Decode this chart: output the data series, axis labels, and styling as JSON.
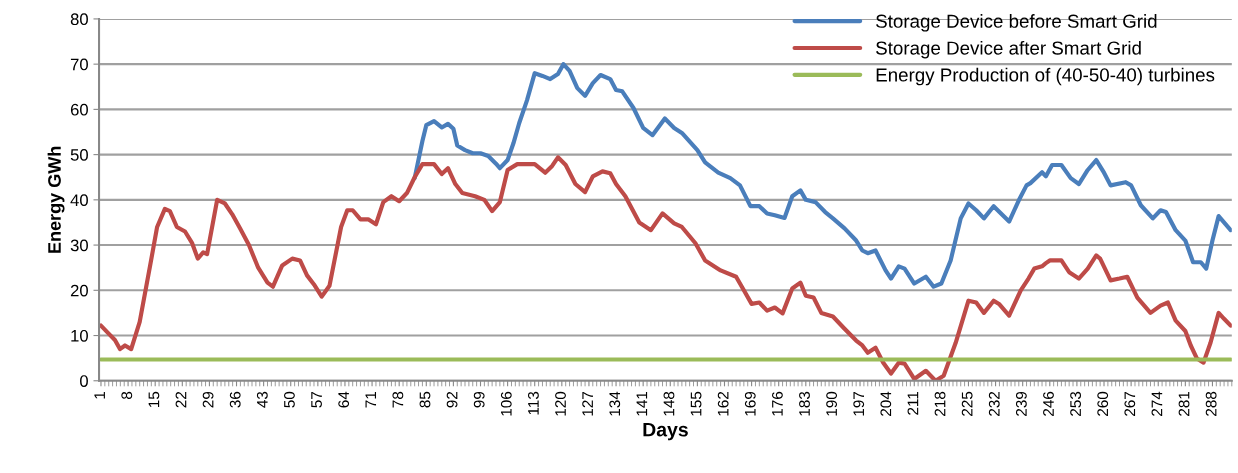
{
  "chart_data": {
    "type": "line",
    "xlabel": "Days",
    "ylabel": "Energy GWh",
    "xlim": [
      0.5,
      293
    ],
    "xticks": [
      1,
      8,
      15,
      22,
      29,
      36,
      43,
      50,
      57,
      64,
      71,
      78,
      85,
      92,
      99,
      106,
      113,
      120,
      127,
      134,
      141,
      148,
      155,
      162,
      169,
      176,
      183,
      190,
      197,
      204,
      211,
      218,
      225,
      232,
      239,
      246,
      253,
      260,
      267,
      274,
      281,
      288
    ],
    "ylim": [
      0,
      80
    ],
    "yticks": [
      0,
      10,
      20,
      30,
      40,
      50,
      60,
      70,
      80
    ],
    "grid": "y",
    "legend": "top right",
    "line_style": "solid",
    "marker": "none",
    "series": [
      {
        "name": "Storage Device before Smart Grid",
        "color": "#4a7ebb",
        "x": [
          82,
          84,
          85,
          87,
          89,
          90.6,
          92,
          93,
          95,
          97,
          99,
          101,
          103,
          104,
          106,
          107.5,
          109,
          111,
          113,
          115,
          117,
          119,
          120.4,
          122,
          124,
          126,
          128,
          130,
          132.5,
          134,
          135.6,
          138.5,
          141,
          143.4,
          146.6,
          149,
          151,
          155,
          157,
          160.4,
          163.5,
          166,
          168.7,
          171,
          173,
          175,
          177.5,
          179.5,
          181.6,
          183,
          185.5,
          188,
          190,
          193,
          196,
          197.6,
          199,
          201,
          203.6,
          205,
          207,
          208.5,
          211,
          214,
          216,
          218,
          220.4,
          223,
          225,
          227,
          229,
          231.5,
          233,
          235.5,
          238,
          240,
          241,
          244,
          245,
          246.6,
          249,
          251.4,
          253.5,
          255.8,
          258,
          260,
          261.7,
          265.6,
          267,
          269.5,
          272.6,
          274.6,
          276,
          278.5,
          281,
          283,
          285,
          286.4,
          288,
          289.6,
          292.7
        ],
        "values": [
          44.8,
          53,
          56.5,
          57.4,
          56,
          56.8,
          55.7,
          52,
          51,
          50.3,
          50.3,
          49.7,
          48,
          47,
          48.8,
          52.5,
          57,
          62,
          68,
          67.4,
          66.7,
          67.8,
          70,
          68.5,
          64.7,
          63,
          65.8,
          67.6,
          66.7,
          64.3,
          64,
          60.3,
          55.9,
          54.3,
          58,
          55.9,
          54.8,
          51,
          48.3,
          46,
          44.8,
          43.2,
          38.6,
          38.6,
          37,
          36.6,
          36,
          40.8,
          42.1,
          40,
          39.5,
          37.3,
          35.9,
          33.7,
          31,
          28.8,
          28.2,
          28.8,
          24.4,
          22.6,
          25.3,
          24.8,
          21.5,
          23,
          20.8,
          21.5,
          26.6,
          35.9,
          39.2,
          37.7,
          35.9,
          38.6,
          37.3,
          35.2,
          39.9,
          43.2,
          43.7,
          46.1,
          45.2,
          47.7,
          47.7,
          44.8,
          43.5,
          46.6,
          48.8,
          46,
          43.2,
          43.9,
          43.2,
          38.8,
          35.9,
          37.7,
          37.3,
          33.3,
          31,
          26.2,
          26.2,
          24.8,
          31,
          36.4,
          33.3
        ]
      },
      {
        "name": "Storage Device after Smart Grid",
        "color": "#be4b48",
        "x": [
          1,
          2.8,
          4.6,
          5.9,
          7.2,
          8.8,
          11,
          13.7,
          15.5,
          17.5,
          18.8,
          20.6,
          22.7,
          24.5,
          26,
          27.4,
          28.4,
          31,
          33,
          34.9,
          36.9,
          39.2,
          41.6,
          44,
          45.4,
          47.8,
          50.4,
          52.4,
          54.2,
          56,
          58,
          60,
          63,
          64.6,
          66,
          68,
          70,
          72,
          73.9,
          76,
          78,
          80,
          82,
          84,
          87,
          89,
          90.6,
          92.5,
          94.3,
          97.6,
          100,
          102,
          104,
          106,
          108.5,
          113,
          115.7,
          117.5,
          119,
          121,
          123.5,
          126,
          128,
          130.5,
          132.5,
          134,
          136.4,
          140,
          143,
          146,
          149,
          151,
          154.5,
          157,
          161,
          165,
          167,
          169,
          171,
          173,
          175,
          177,
          179.5,
          181.6,
          183,
          185,
          187,
          190,
          193,
          196,
          197.6,
          199,
          201,
          203,
          205,
          207,
          208.5,
          211,
          214,
          216.5,
          218.6,
          221.7,
          225,
          227,
          229,
          231.5,
          233,
          235.5,
          238.5,
          240.5,
          242,
          244,
          245,
          246,
          249,
          251,
          253.5,
          255.8,
          258,
          259,
          261.7,
          264,
          266,
          268.6,
          272,
          274.6,
          276.5,
          278.5,
          281,
          282.4,
          284,
          285.7,
          287.5,
          289.6,
          291,
          292.7
        ],
        "values": [
          12.2,
          10.6,
          9,
          7,
          7.8,
          7,
          13,
          25.5,
          34,
          38,
          37.5,
          34,
          33,
          30.5,
          27,
          28.4,
          28,
          40,
          39.2,
          36.8,
          33.7,
          30,
          25,
          21.7,
          20.8,
          25.5,
          27,
          26.6,
          23.3,
          21.3,
          18.6,
          21,
          34,
          37.7,
          37.7,
          35.7,
          35.7,
          34.6,
          39.5,
          40.8,
          39.7,
          41.5,
          45,
          47.9,
          47.9,
          45.7,
          47,
          43.5,
          41.5,
          40.8,
          40,
          37.5,
          39.5,
          46.6,
          47.9,
          47.9,
          46,
          47.5,
          49.4,
          47.7,
          43.5,
          41.7,
          45.2,
          46.3,
          45.9,
          43.5,
          40.8,
          35,
          33.3,
          37,
          34.8,
          34,
          30.4,
          26.6,
          24.4,
          23,
          20,
          17,
          17.3,
          15.5,
          16.2,
          14.9,
          20.4,
          21.7,
          18.8,
          18.4,
          15,
          14.2,
          11.5,
          8.9,
          7.8,
          6.2,
          7.3,
          4,
          1.6,
          4,
          3.8,
          0.4,
          2.2,
          0,
          1.1,
          8.4,
          17.7,
          17.3,
          15,
          17.7,
          16.9,
          14.4,
          20,
          22.6,
          24.8,
          25.3,
          26,
          26.6,
          26.6,
          24,
          22.6,
          24.8,
          27.7,
          27,
          22.2,
          22.6,
          23,
          18.4,
          15,
          16.6,
          17.3,
          13.3,
          11,
          7.8,
          4.9,
          4,
          8.4,
          15,
          13.7,
          12.2
        ]
      },
      {
        "name": "Energy Production of (40-50-40) turbines",
        "color": "#9bbb59",
        "x": [
          1,
          292.7
        ],
        "values": [
          4.7,
          4.7
        ]
      }
    ]
  }
}
